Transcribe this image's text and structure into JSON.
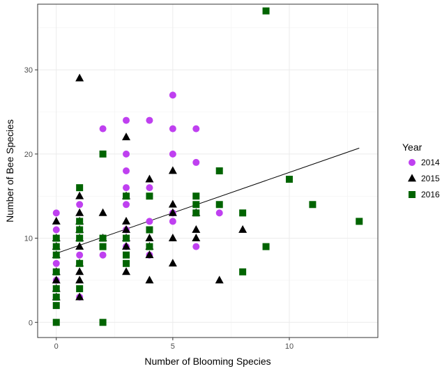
{
  "chart_data": {
    "type": "scatter",
    "xlabel": "Number of Blooming Species",
    "ylabel": "Number of Bee Species",
    "xlim": [
      -0.8,
      13.8
    ],
    "ylim": [
      -1.8,
      37.8
    ],
    "xticks": [
      0,
      5,
      10
    ],
    "yticks": [
      0,
      10,
      20,
      30
    ],
    "grid": true,
    "legend": {
      "title": "Year",
      "position": "right"
    },
    "series": [
      {
        "name": "2014",
        "marker": "circle",
        "color": "#bf40f0",
        "points": [
          [
            0,
            13
          ],
          [
            0,
            11
          ],
          [
            0,
            9
          ],
          [
            0,
            7
          ],
          [
            0,
            5
          ],
          [
            0,
            3
          ],
          [
            1,
            14
          ],
          [
            1,
            12
          ],
          [
            1,
            8
          ],
          [
            1,
            3
          ],
          [
            2,
            23
          ],
          [
            2,
            10
          ],
          [
            2,
            8
          ],
          [
            3,
            24
          ],
          [
            3,
            20
          ],
          [
            3,
            18
          ],
          [
            3,
            16
          ],
          [
            3,
            14
          ],
          [
            3,
            11
          ],
          [
            3,
            9
          ],
          [
            4,
            24
          ],
          [
            4,
            16
          ],
          [
            4,
            12
          ],
          [
            4,
            8
          ],
          [
            5,
            27
          ],
          [
            5,
            23
          ],
          [
            5,
            20
          ],
          [
            5,
            13
          ],
          [
            5,
            12
          ],
          [
            6,
            23
          ],
          [
            6,
            19
          ],
          [
            6,
            9
          ],
          [
            7,
            13
          ]
        ]
      },
      {
        "name": "2015",
        "marker": "triangle",
        "color": "#000000",
        "points": [
          [
            0,
            12
          ],
          [
            0,
            10
          ],
          [
            0,
            9
          ],
          [
            0,
            8
          ],
          [
            0,
            6
          ],
          [
            0,
            5
          ],
          [
            0,
            4
          ],
          [
            0,
            3
          ],
          [
            1,
            29
          ],
          [
            1,
            15
          ],
          [
            1,
            13
          ],
          [
            1,
            12
          ],
          [
            1,
            11
          ],
          [
            1,
            10
          ],
          [
            1,
            9
          ],
          [
            1,
            7
          ],
          [
            1,
            6
          ],
          [
            1,
            5
          ],
          [
            1,
            3
          ],
          [
            2,
            13
          ],
          [
            2,
            10
          ],
          [
            3,
            22
          ],
          [
            3,
            15
          ],
          [
            3,
            12
          ],
          [
            3,
            11
          ],
          [
            3,
            10
          ],
          [
            3,
            9
          ],
          [
            3,
            6
          ],
          [
            4,
            17
          ],
          [
            4,
            10
          ],
          [
            4,
            9
          ],
          [
            4,
            8
          ],
          [
            4,
            5
          ],
          [
            5,
            18
          ],
          [
            5,
            14
          ],
          [
            5,
            13
          ],
          [
            5,
            10
          ],
          [
            5,
            7
          ],
          [
            6,
            13
          ],
          [
            6,
            11
          ],
          [
            6,
            10
          ],
          [
            7,
            5
          ],
          [
            8,
            11
          ]
        ]
      },
      {
        "name": "2016",
        "marker": "square",
        "color": "#006400",
        "points": [
          [
            0,
            10
          ],
          [
            0,
            9
          ],
          [
            0,
            8
          ],
          [
            0,
            6
          ],
          [
            0,
            4
          ],
          [
            0,
            3
          ],
          [
            0,
            2
          ],
          [
            0,
            0
          ],
          [
            1,
            16
          ],
          [
            1,
            12
          ],
          [
            1,
            11
          ],
          [
            1,
            10
          ],
          [
            1,
            7
          ],
          [
            1,
            4
          ],
          [
            2,
            20
          ],
          [
            2,
            10
          ],
          [
            2,
            9
          ],
          [
            2,
            0
          ],
          [
            3,
            15
          ],
          [
            3,
            10
          ],
          [
            3,
            8
          ],
          [
            3,
            7
          ],
          [
            4,
            15
          ],
          [
            4,
            11
          ],
          [
            4,
            9
          ],
          [
            6,
            15
          ],
          [
            6,
            14
          ],
          [
            6,
            13
          ],
          [
            7,
            18
          ],
          [
            7,
            14
          ],
          [
            8,
            13
          ],
          [
            8,
            6
          ],
          [
            9,
            37
          ],
          [
            9,
            9
          ],
          [
            10,
            17
          ],
          [
            11,
            14
          ],
          [
            13,
            12
          ]
        ]
      }
    ],
    "trendline": {
      "x": [
        0,
        13
      ],
      "y": [
        8.2,
        20.7
      ]
    }
  }
}
